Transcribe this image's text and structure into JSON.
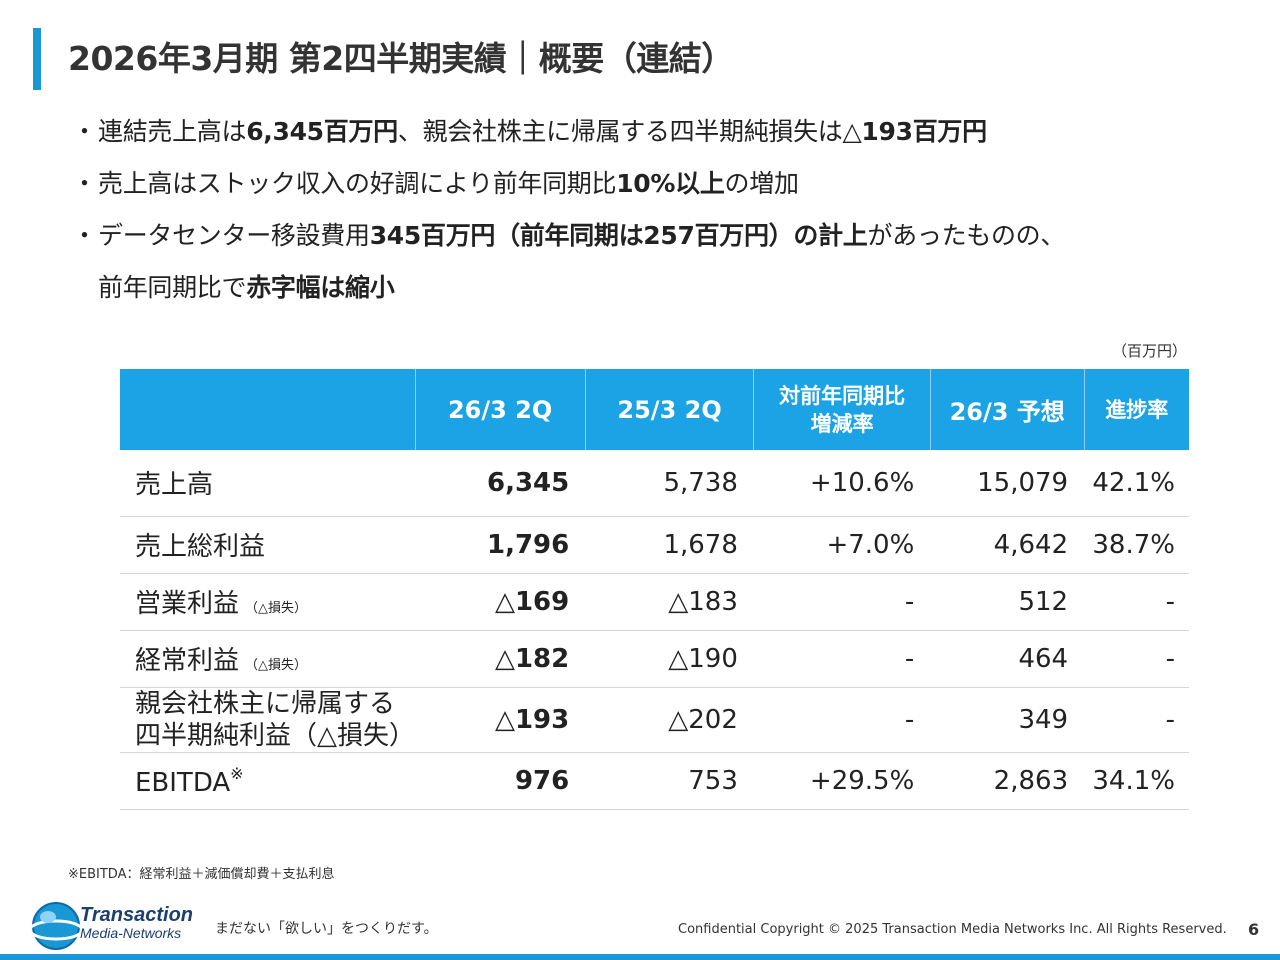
{
  "title": "2026年3月期 第2四半期実績｜概要（連結）",
  "bullets": {
    "dot": "・",
    "b1_p1": "連結売上高は",
    "b1_b1": "6,345百万円",
    "b1_p2": "、親会社株主に帰属する四半期純損失は",
    "b1_b2": "△193百万円",
    "b2_p1": "売上高はストック収入の好調により前年同期比",
    "b2_b1": "10%以上",
    "b2_p2": "の増加",
    "b3_p1": "データセンター移設費用",
    "b3_b1": "345百万円（前年同期は257百万円）の計上",
    "b3_p2": "があったものの、",
    "b3_p3": "前年同期比で",
    "b3_b2": "赤字幅は縮小"
  },
  "unit": "（百万円）",
  "table": {
    "headers": [
      "",
      "26/3 2Q",
      "25/3 2Q",
      "対前年同期比",
      "増減率",
      "26/3 予想",
      "進捗率"
    ],
    "rows": [
      {
        "label": "売上高",
        "note": "",
        "cur": "6,345",
        "prev": "5,738",
        "yoy": "+10.6%",
        "fcst": "15,079",
        "prog": "42.1%"
      },
      {
        "label": "売上総利益",
        "note": "",
        "cur": "1,796",
        "prev": "1,678",
        "yoy": "+7.0%",
        "fcst": "4,642",
        "prog": "38.7%"
      },
      {
        "label": "営業利益",
        "note": "（△損失）",
        "cur": "△169",
        "prev": "△183",
        "yoy": "-",
        "fcst": "512",
        "prog": "-"
      },
      {
        "label": "経常利益",
        "note": "（△損失）",
        "cur": "△182",
        "prev": "△190",
        "yoy": "-",
        "fcst": "464",
        "prog": "-"
      },
      {
        "label": "親会社株主に帰属する",
        "label2": "四半期純利益（△損失）",
        "cur": "△193",
        "prev": "△202",
        "yoy": "-",
        "fcst": "349",
        "prog": "-"
      },
      {
        "label": "EBITDA",
        "mark": "※",
        "cur": "976",
        "prev": "753",
        "yoy": "+29.5%",
        "fcst": "2,863",
        "prog": "34.1%"
      }
    ]
  },
  "footnote": "※EBITDA：経常利益＋減価償却費＋支払利息",
  "footer": {
    "brand_name": "Transaction",
    "brand_sub": "Media-Networks",
    "tagline": "まだない「欲しい」をつくりだす。",
    "copyright": "Confidential  Copyright © 2025 Transaction Media Networks Inc. All Rights Reserved.",
    "page": "6"
  },
  "colors": {
    "accent": "#1a98d5",
    "header_bg": "#1ba3e6"
  }
}
